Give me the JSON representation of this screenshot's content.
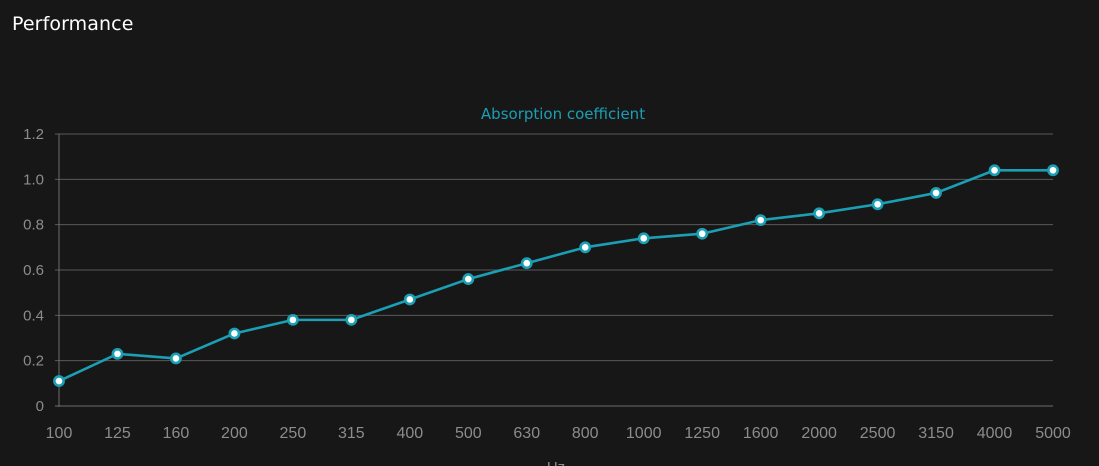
{
  "page": {
    "title": "Performance"
  },
  "chart_data": {
    "type": "line",
    "title": "Absorption coefficient",
    "xlabel": "Hz",
    "ylabel": "",
    "categories": [
      "100",
      "125",
      "160",
      "200",
      "250",
      "315",
      "400",
      "500",
      "630",
      "800",
      "1000",
      "1250",
      "1600",
      "2000",
      "2500",
      "3150",
      "4000",
      "5000"
    ],
    "series": [
      {
        "name": "Absorption coefficient",
        "values": [
          0.11,
          0.23,
          0.21,
          0.32,
          0.38,
          0.38,
          0.47,
          0.56,
          0.63,
          0.7,
          0.74,
          0.76,
          0.82,
          0.85,
          0.89,
          0.94,
          1.04,
          1.04
        ]
      }
    ],
    "ylim": [
      0,
      1.2
    ],
    "yticks": [
      "0",
      "0.2",
      "0.4",
      "0.6",
      "0.8",
      "1.0",
      "1.2"
    ],
    "grid": true,
    "colors": {
      "line": "#1a9fb4",
      "point_fill": "#ffffff",
      "grid": "#5a5a5a",
      "axis": "#6e6e6e",
      "tick_text": "#8c8c8c",
      "title": "#1a9fb4",
      "background": "#171717"
    }
  }
}
